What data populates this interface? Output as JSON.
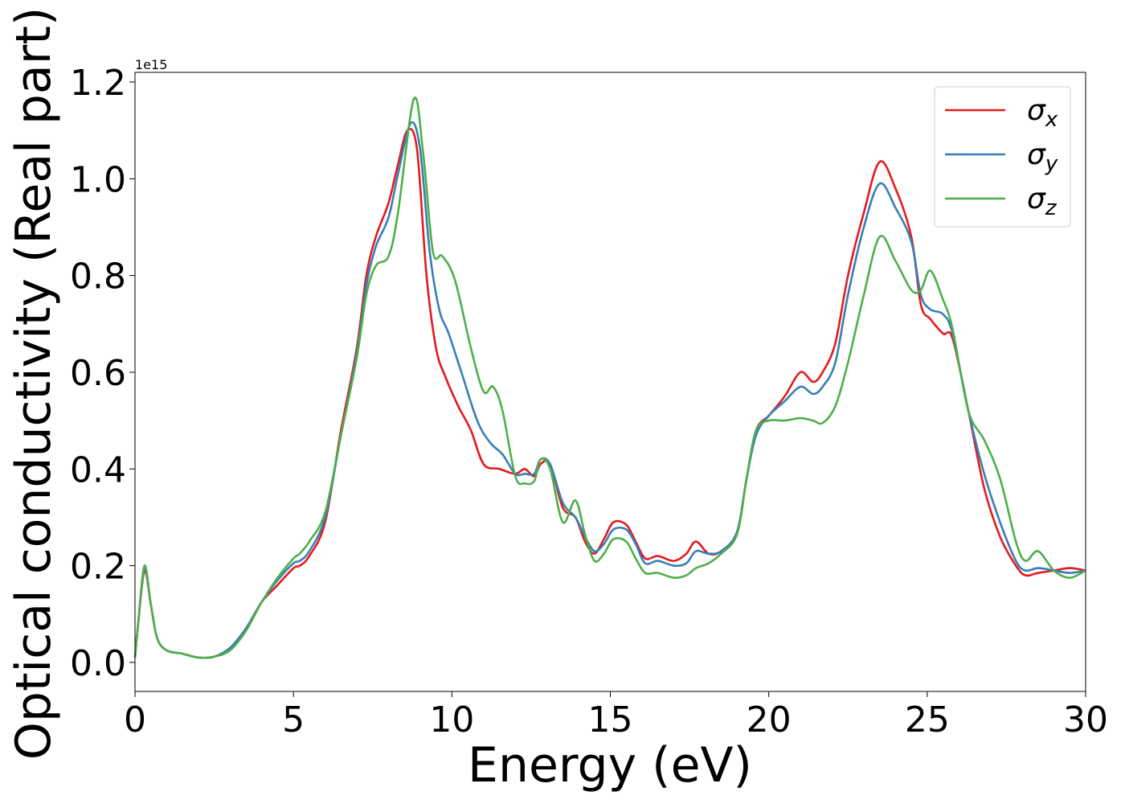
{
  "chart_data": {
    "type": "line",
    "xlabel": "Energy (eV)",
    "ylabel": "Optical conductivity (Real part)",
    "y_offset_text": "1e15",
    "y_scale_factor": 1000000000000000.0,
    "xlim": [
      0,
      30
    ],
    "ylim": [
      -0.06,
      1.22
    ],
    "x_ticks": [
      0,
      5,
      10,
      15,
      20,
      25,
      30
    ],
    "x_tick_labels": [
      "0",
      "5",
      "10",
      "15",
      "20",
      "25",
      "30"
    ],
    "y_ticks": [
      0.0,
      0.2,
      0.4,
      0.6,
      0.8,
      1.0,
      1.2
    ],
    "y_tick_labels": [
      "0.0",
      "0.2",
      "0.4",
      "0.6",
      "0.8",
      "1.0",
      "1.2"
    ],
    "grid": false,
    "legend": {
      "position": "top-right",
      "entries": [
        {
          "symbol": "σ",
          "subscript": "x"
        },
        {
          "symbol": "σ",
          "subscript": "y"
        },
        {
          "symbol": "σ",
          "subscript": "z"
        }
      ]
    },
    "series": [
      {
        "color": "#e41a1c",
        "x": [
          0,
          0.1,
          0.3,
          0.5,
          0.7,
          1,
          1.5,
          2,
          2.5,
          3,
          3.5,
          4,
          4.5,
          5,
          5.2,
          5.5,
          6,
          6.5,
          7,
          7.3,
          7.6,
          8,
          8.3,
          8.6,
          8.9,
          9.2,
          9.5,
          9.8,
          10.2,
          10.6,
          11,
          11.5,
          12,
          12.3,
          12.6,
          12.8,
          13.1,
          13.5,
          13.9,
          14.2,
          14.5,
          14.8,
          15.1,
          15.5,
          15.8,
          16.1,
          16.5,
          17,
          17.4,
          17.7,
          18.1,
          18.5,
          19,
          19.3,
          19.6,
          20,
          20.5,
          21,
          21.4,
          21.7,
          22.1,
          22.5,
          23,
          23.5,
          24,
          24.5,
          24.8,
          25.1,
          25.5,
          25.8,
          26.3,
          26.8,
          27.3,
          27.8,
          28.1,
          28.5,
          29,
          29.5,
          30
        ],
        "values": [
          0.01,
          0.08,
          0.19,
          0.12,
          0.05,
          0.025,
          0.018,
          0.01,
          0.012,
          0.03,
          0.07,
          0.125,
          0.16,
          0.195,
          0.2,
          0.22,
          0.29,
          0.48,
          0.65,
          0.8,
          0.88,
          0.95,
          1.03,
          1.1,
          1.06,
          0.8,
          0.65,
          0.59,
          0.53,
          0.48,
          0.41,
          0.4,
          0.39,
          0.4,
          0.385,
          0.41,
          0.41,
          0.32,
          0.3,
          0.25,
          0.225,
          0.255,
          0.29,
          0.285,
          0.25,
          0.215,
          0.22,
          0.21,
          0.225,
          0.25,
          0.225,
          0.23,
          0.27,
          0.38,
          0.48,
          0.51,
          0.55,
          0.6,
          0.58,
          0.6,
          0.66,
          0.8,
          0.93,
          1.035,
          0.98,
          0.88,
          0.74,
          0.71,
          0.68,
          0.67,
          0.52,
          0.36,
          0.26,
          0.2,
          0.18,
          0.185,
          0.19,
          0.195,
          0.19
        ]
      },
      {
        "color": "#377eb8",
        "x": [
          0,
          0.1,
          0.3,
          0.5,
          0.7,
          1,
          1.5,
          2,
          2.5,
          3,
          3.5,
          4,
          4.5,
          5,
          5.2,
          5.5,
          6,
          6.5,
          7,
          7.3,
          7.6,
          8,
          8.3,
          8.7,
          9,
          9.3,
          9.6,
          9.9,
          10.3,
          10.8,
          11.2,
          11.6,
          12,
          12.3,
          12.6,
          12.8,
          13.1,
          13.5,
          13.9,
          14.2,
          14.5,
          14.8,
          15.1,
          15.5,
          15.8,
          16.1,
          16.5,
          17,
          17.4,
          17.7,
          18.1,
          18.5,
          19,
          19.3,
          19.6,
          20,
          20.5,
          21,
          21.4,
          21.7,
          22.1,
          22.5,
          23,
          23.5,
          24,
          24.5,
          24.8,
          25.1,
          25.5,
          25.8,
          26.3,
          26.8,
          27.3,
          27.8,
          28.1,
          28.5,
          29,
          29.5,
          30
        ],
        "values": [
          0.01,
          0.08,
          0.195,
          0.12,
          0.05,
          0.025,
          0.018,
          0.01,
          0.012,
          0.03,
          0.07,
          0.125,
          0.17,
          0.205,
          0.21,
          0.23,
          0.3,
          0.47,
          0.64,
          0.78,
          0.86,
          0.92,
          1.01,
          1.115,
          1.06,
          0.85,
          0.73,
          0.68,
          0.6,
          0.5,
          0.455,
          0.43,
          0.39,
          0.39,
          0.39,
          0.42,
          0.41,
          0.33,
          0.3,
          0.26,
          0.23,
          0.245,
          0.275,
          0.275,
          0.245,
          0.205,
          0.21,
          0.2,
          0.205,
          0.23,
          0.225,
          0.23,
          0.27,
          0.38,
          0.47,
          0.51,
          0.54,
          0.57,
          0.555,
          0.57,
          0.62,
          0.76,
          0.9,
          0.99,
          0.94,
          0.87,
          0.76,
          0.73,
          0.72,
          0.68,
          0.52,
          0.39,
          0.29,
          0.21,
          0.19,
          0.195,
          0.19,
          0.185,
          0.19
        ]
      },
      {
        "color": "#4daf4a",
        "x": [
          0,
          0.1,
          0.3,
          0.5,
          0.7,
          1,
          1.5,
          2,
          2.5,
          3,
          3.5,
          4,
          4.5,
          5,
          5.2,
          5.5,
          6,
          6.5,
          7,
          7.3,
          7.6,
          8,
          8.3,
          8.8,
          9.1,
          9.4,
          9.7,
          10.1,
          10.6,
          11,
          11.3,
          11.6,
          12,
          12.3,
          12.6,
          12.8,
          13.1,
          13.5,
          13.9,
          14.2,
          14.5,
          14.8,
          15.1,
          15.5,
          15.8,
          16.1,
          16.5,
          17,
          17.4,
          17.7,
          18.1,
          18.5,
          19,
          19.3,
          19.6,
          20,
          20.5,
          21,
          21.4,
          21.7,
          22.1,
          22.5,
          23,
          23.5,
          24,
          24.5,
          24.8,
          25.1,
          25.5,
          25.8,
          26.3,
          26.8,
          27.3,
          27.8,
          28.1,
          28.5,
          29,
          29.5,
          30
        ],
        "values": [
          0.01,
          0.08,
          0.2,
          0.12,
          0.05,
          0.025,
          0.018,
          0.01,
          0.012,
          0.025,
          0.065,
          0.125,
          0.175,
          0.215,
          0.225,
          0.25,
          0.31,
          0.47,
          0.63,
          0.76,
          0.82,
          0.84,
          0.93,
          1.165,
          1.05,
          0.85,
          0.84,
          0.79,
          0.65,
          0.56,
          0.57,
          0.52,
          0.385,
          0.37,
          0.375,
          0.42,
          0.4,
          0.29,
          0.335,
          0.265,
          0.21,
          0.225,
          0.255,
          0.25,
          0.215,
          0.185,
          0.185,
          0.175,
          0.18,
          0.195,
          0.205,
          0.225,
          0.265,
          0.38,
          0.48,
          0.5,
          0.5,
          0.505,
          0.5,
          0.495,
          0.53,
          0.62,
          0.76,
          0.88,
          0.83,
          0.77,
          0.77,
          0.81,
          0.75,
          0.69,
          0.52,
          0.46,
          0.38,
          0.25,
          0.21,
          0.23,
          0.19,
          0.175,
          0.19
        ]
      }
    ]
  }
}
